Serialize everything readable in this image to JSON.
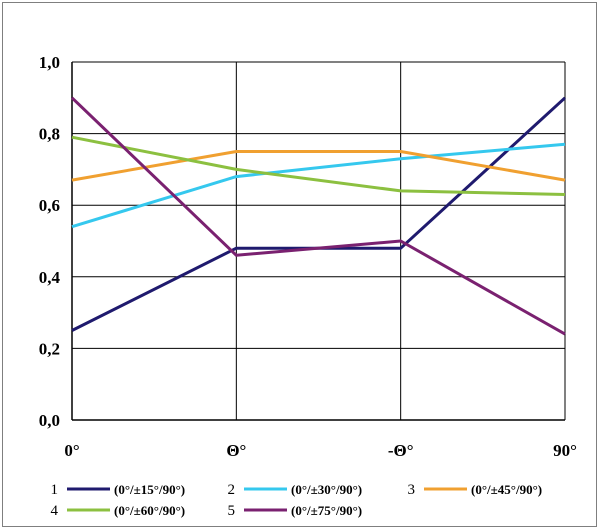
{
  "chart_data": {
    "type": "line",
    "title": "",
    "xlabel": "",
    "ylabel": "",
    "categories": [
      "0°",
      "Θ°",
      "-Θ°",
      "90°"
    ],
    "ylim": [
      0,
      1.0
    ],
    "yticks": [
      "0,0",
      "0,2",
      "0,4",
      "0,6",
      "0,8",
      "1,0"
    ],
    "grid": true,
    "legend_position": "bottom",
    "series": [
      {
        "id": "1",
        "name": "(0°/±15°/90°)",
        "color": "#1f1a6e",
        "values": [
          0.25,
          0.48,
          0.48,
          0.9
        ]
      },
      {
        "id": "2",
        "name": "(0°/±30°/90°)",
        "color": "#35c8ee",
        "values": [
          0.54,
          0.68,
          0.73,
          0.77
        ]
      },
      {
        "id": "3",
        "name": "(0°/±45°/90°)",
        "color": "#f0a030",
        "values": [
          0.67,
          0.75,
          0.75,
          0.67
        ]
      },
      {
        "id": "4",
        "name": "(0°/±60°/90°)",
        "color": "#8cc040",
        "values": [
          0.79,
          0.7,
          0.64,
          0.63
        ]
      },
      {
        "id": "5",
        "name": "(0°/±75°/90°)",
        "color": "#7a2170",
        "values": [
          0.9,
          0.46,
          0.5,
          0.24
        ]
      }
    ]
  }
}
